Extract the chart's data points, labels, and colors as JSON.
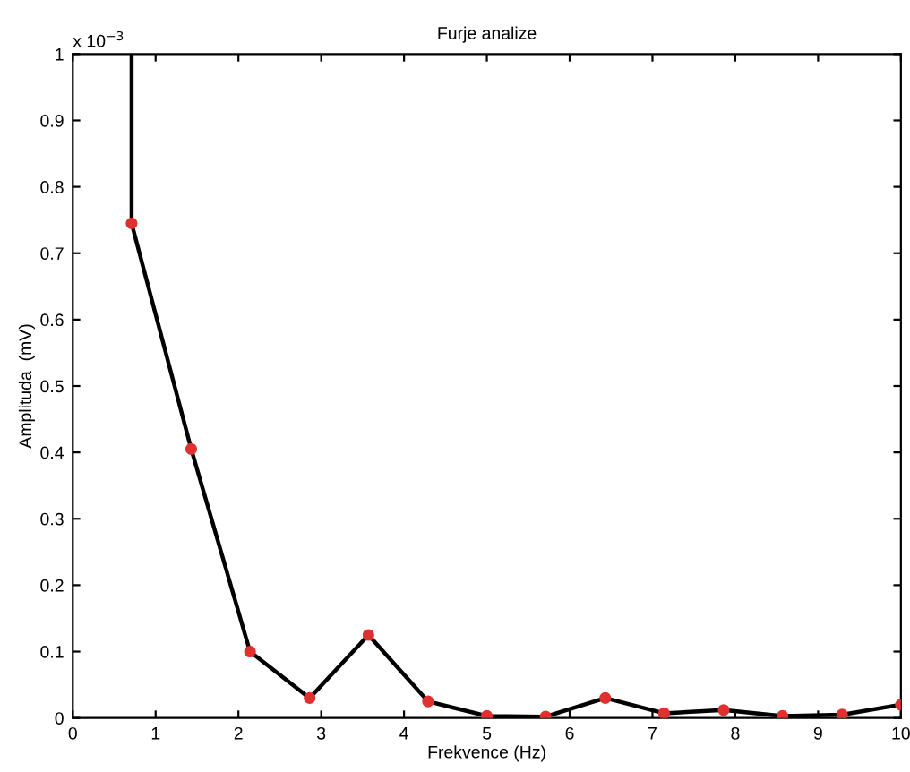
{
  "chart_data": {
    "type": "line",
    "title": "Furje analize",
    "xlabel": "Frekvence (Hz)",
    "ylabel": "Amplituda  (mV)",
    "annotations": [
      "x 10$^{−3}$"
    ],
    "xlim": [
      0,
      10
    ],
    "xticks": [
      0,
      1,
      2,
      3,
      4,
      5,
      6,
      7,
      8,
      9,
      10
    ],
    "ylim": [
      0,
      1
    ],
    "yticks": [
      0,
      0.1,
      0.2,
      0.3,
      0.4,
      0.5,
      0.6,
      0.7,
      0.8,
      0.9,
      1
    ],
    "grid": false,
    "legend": false,
    "series": [
      {
        "color": "#000000",
        "marker": "none",
        "x": [
          0.71,
          0.71,
          1.43,
          2.14,
          2.86,
          3.57,
          4.29,
          5.0,
          5.71,
          6.43,
          7.14,
          7.86,
          8.57,
          9.29,
          10.0
        ],
        "values": [
          1,
          0.745,
          0.405,
          0.1,
          0.03,
          0.125,
          0.025,
          0.003,
          0.002,
          0.03,
          0.007,
          0.012,
          0.003,
          0.005,
          0.02
        ]
      },
      {
        "type": "scatter",
        "color": "#e03030",
        "marker": "circle",
        "x": [
          0.71,
          1.43,
          2.14,
          2.86,
          3.57,
          4.29,
          5.0,
          5.71,
          6.43,
          7.14,
          7.86,
          8.57,
          9.29,
          10.0
        ],
        "values": [
          0.745,
          0.405,
          0.1,
          0.03,
          0.125,
          0.025,
          0.003,
          0.002,
          0.03,
          0.007,
          0.012,
          0.003,
          0.005,
          0.02
        ]
      }
    ]
  }
}
